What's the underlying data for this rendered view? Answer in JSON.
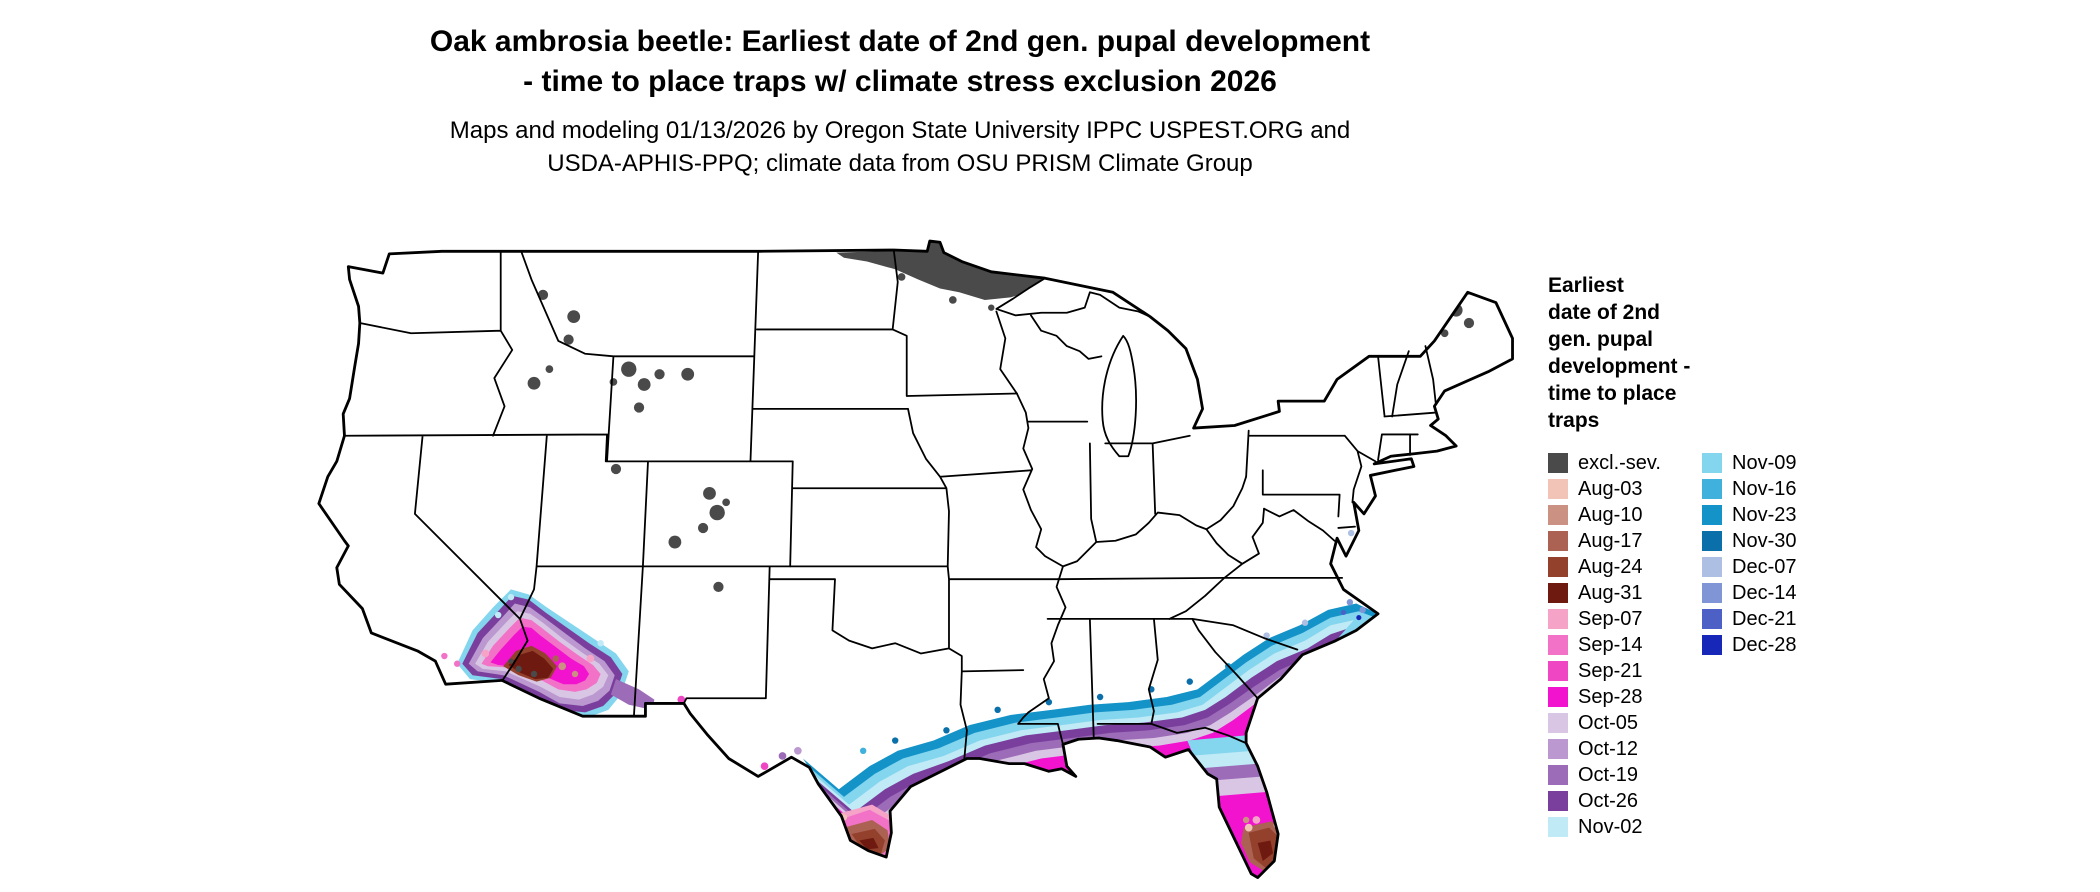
{
  "header": {
    "title_line1": "Oak ambrosia beetle: Earliest date of 2nd gen. pupal development",
    "title_line2": "- time to place traps w/ climate stress exclusion 2026",
    "subtitle_line1": "Maps and modeling 01/13/2026 by Oregon State University IPPC USPEST.ORG and",
    "subtitle_line2": "USDA-APHIS-PPQ; climate data from OSU PRISM Climate Group"
  },
  "legend": {
    "title_lines": [
      "Earliest",
      "date of 2nd",
      "gen. pupal",
      "development -",
      "time to place",
      "traps"
    ],
    "column1": [
      {
        "label": "excl.-sev.",
        "color": "#4a4a4a"
      },
      {
        "label": "Aug-03",
        "color": "#f2c3b7"
      },
      {
        "label": "Aug-10",
        "color": "#cb9182"
      },
      {
        "label": "Aug-17",
        "color": "#ab6253"
      },
      {
        "label": "Aug-24",
        "color": "#93402c"
      },
      {
        "label": "Aug-31",
        "color": "#6e1a10"
      },
      {
        "label": "Sep-07",
        "color": "#f6a3c8"
      },
      {
        "label": "Sep-14",
        "color": "#f272c8"
      },
      {
        "label": "Sep-21",
        "color": "#ef46c4"
      },
      {
        "label": "Sep-28",
        "color": "#f213cf"
      },
      {
        "label": "Oct-05",
        "color": "#d9c6e4"
      },
      {
        "label": "Oct-12",
        "color": "#bb98cf"
      },
      {
        "label": "Oct-19",
        "color": "#9c6cb8"
      },
      {
        "label": "Oct-26",
        "color": "#7a3f9d"
      },
      {
        "label": "Nov-02",
        "color": "#bfeaf6"
      }
    ],
    "column2": [
      {
        "label": "Nov-09",
        "color": "#84d5ee"
      },
      {
        "label": "Nov-16",
        "color": "#3fb1dc"
      },
      {
        "label": "Nov-23",
        "color": "#1493c8"
      },
      {
        "label": "Nov-30",
        "color": "#0b6fa9"
      },
      {
        "label": "Dec-07",
        "color": "#aebfe4"
      },
      {
        "label": "Dec-14",
        "color": "#8095d6"
      },
      {
        "label": "Dec-21",
        "color": "#4d60c6"
      },
      {
        "label": "Dec-28",
        "color": "#1728b8"
      }
    ]
  },
  "colors": {
    "excl": "#4a4a4a",
    "aug03": "#f2c3b7",
    "aug10": "#cb9182",
    "aug17": "#ab6253",
    "aug24": "#93402c",
    "aug31": "#6e1a10",
    "sep07": "#f6a3c8",
    "sep14": "#f272c8",
    "sep21": "#ef46c4",
    "sep28": "#f213cf",
    "oct05": "#d9c6e4",
    "oct12": "#bb98cf",
    "oct19": "#9c6cb8",
    "oct26": "#7a3f9d",
    "nov02": "#bfeaf6",
    "nov09": "#84d5ee",
    "nov16": "#3fb1dc",
    "nov23": "#1493c8",
    "nov30": "#0b6fa9",
    "dec07": "#aebfe4",
    "dec14": "#8095d6",
    "dec21": "#4d60c6",
    "dec28": "#1728b8",
    "outline": "#000000",
    "land": "#ffffff"
  }
}
